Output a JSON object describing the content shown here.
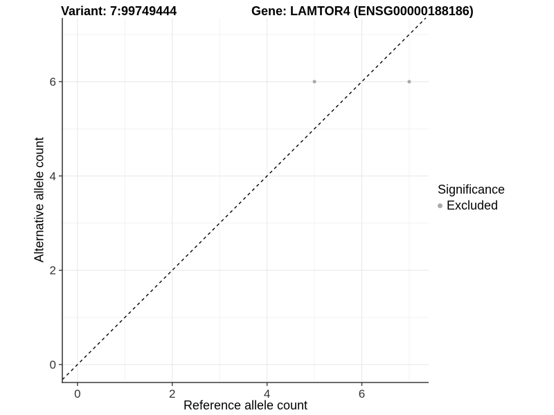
{
  "titles": {
    "variant": "Variant: 7:99749444",
    "gene": "Gene: LAMTOR4 (ENSG00000188186)"
  },
  "chart_data": {
    "type": "scatter",
    "title_left": "Variant: 7:99749444",
    "title_right": "Gene: LAMTOR4 (ENSG00000188186)",
    "xlabel": "Reference allele count",
    "ylabel": "Alternative allele count",
    "xlim": [
      -0.32,
      7.41
    ],
    "ylim": [
      -0.38,
      7.35
    ],
    "xticks": [
      0,
      2,
      4,
      6
    ],
    "yticks": [
      0,
      2,
      4,
      6
    ],
    "x_minor": [
      1,
      3,
      5,
      7
    ],
    "y_minor": [
      1,
      3,
      5,
      7
    ],
    "grid": true,
    "identity_line": {
      "shown": true,
      "style": "dashed",
      "equation": "y = x"
    },
    "series": [
      {
        "name": "Excluded",
        "points": [
          {
            "x": 5,
            "y": 6
          },
          {
            "x": 7,
            "y": 6
          }
        ],
        "color": "#ababab"
      }
    ],
    "legend": {
      "title": "Significance",
      "position": "right",
      "items": [
        {
          "label": "Excluded",
          "color": "#ababab"
        }
      ]
    },
    "colors": {
      "background": "#ffffff",
      "grid_major": "#e6e6e6",
      "grid_minor": "#f2f2f2",
      "axis_line": "#3a3a3a",
      "tick_label": "#333333",
      "identity_line": "#000000",
      "point": "#ababab"
    }
  }
}
